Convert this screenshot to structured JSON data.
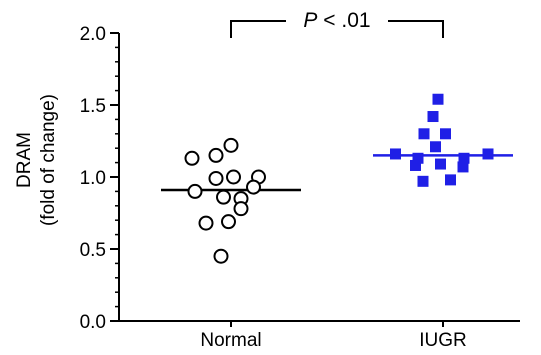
{
  "chart_data": {
    "type": "scatter",
    "ylabel_lines": [
      "DRAM",
      "(fold of change)"
    ],
    "categories": [
      "Normal",
      "IUGR"
    ],
    "ylim": [
      0,
      2.0
    ],
    "yticks": [
      "0.0",
      "0.5",
      "1.0",
      "1.5",
      "2.0"
    ],
    "ytick_values": [
      0,
      0.5,
      1.0,
      1.5,
      2.0
    ],
    "minor_tick_step": 0.1,
    "series": [
      {
        "category": "Normal",
        "marker": "open-circle",
        "color": "#000000",
        "mean": 0.91,
        "points": [
          {
            "offset": 0.0,
            "y": 1.22
          },
          {
            "offset": -0.78,
            "y": 1.13
          },
          {
            "offset": -0.3,
            "y": 1.15
          },
          {
            "offset": 0.05,
            "y": 1.0
          },
          {
            "offset": 0.55,
            "y": 1.0
          },
          {
            "offset": -0.3,
            "y": 0.99
          },
          {
            "offset": 0.45,
            "y": 0.93
          },
          {
            "offset": -0.72,
            "y": 0.9
          },
          {
            "offset": -0.15,
            "y": 0.86
          },
          {
            "offset": 0.2,
            "y": 0.85
          },
          {
            "offset": 0.2,
            "y": 0.78
          },
          {
            "offset": -0.5,
            "y": 0.68
          },
          {
            "offset": -0.05,
            "y": 0.69
          },
          {
            "offset": -0.2,
            "y": 0.45
          }
        ]
      },
      {
        "category": "IUGR",
        "marker": "filled-square",
        "color": "#1f1fe6",
        "mean": 1.15,
        "points": [
          {
            "offset": -0.1,
            "y": 1.54
          },
          {
            "offset": -0.2,
            "y": 1.42
          },
          {
            "offset": -0.38,
            "y": 1.3
          },
          {
            "offset": 0.05,
            "y": 1.3
          },
          {
            "offset": -0.15,
            "y": 1.21
          },
          {
            "offset": -0.95,
            "y": 1.16
          },
          {
            "offset": -0.5,
            "y": 1.13
          },
          {
            "offset": 0.42,
            "y": 1.13
          },
          {
            "offset": 0.9,
            "y": 1.16
          },
          {
            "offset": -0.05,
            "y": 1.09
          },
          {
            "offset": -0.55,
            "y": 1.08
          },
          {
            "offset": 0.4,
            "y": 1.07
          },
          {
            "offset": -0.4,
            "y": 0.97
          },
          {
            "offset": 0.15,
            "y": 0.98
          }
        ]
      }
    ],
    "significance": {
      "label_italic": "P",
      "label_rest": " < .01",
      "y": 2.0
    }
  }
}
